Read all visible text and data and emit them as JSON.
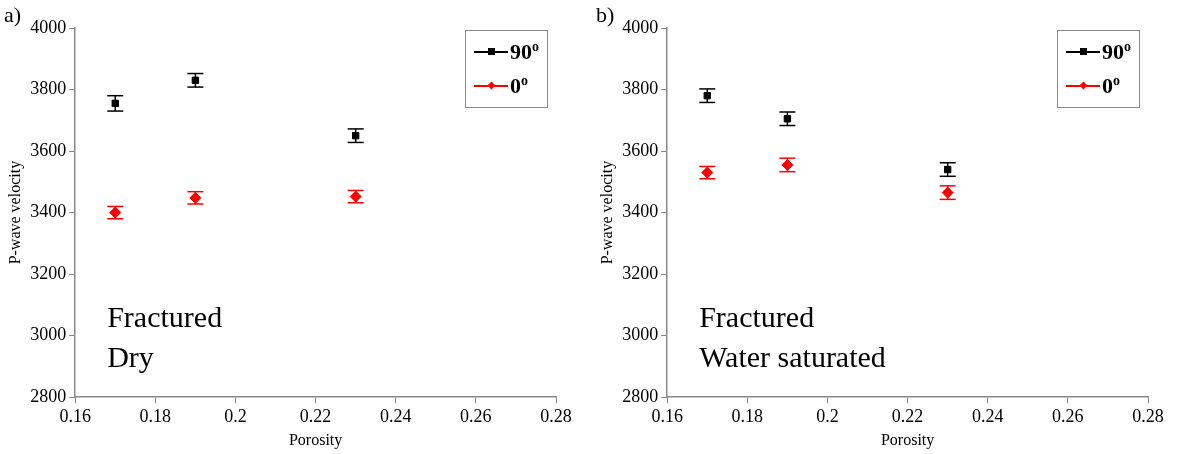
{
  "chart_data": [
    {
      "type": "scatter",
      "title": "a)",
      "xlabel": "Porosity",
      "ylabel": "P-wave velocity",
      "xlim": [
        0.16,
        0.28
      ],
      "xticks": [
        0.16,
        0.18,
        0.2,
        0.22,
        0.24,
        0.26,
        0.28
      ],
      "ylim": [
        2800,
        4000
      ],
      "yticks": [
        2800,
        3000,
        3200,
        3400,
        3600,
        3800,
        4000
      ],
      "grid": false,
      "legend": "top right",
      "annotations": [
        "Fractured",
        "Dry"
      ],
      "series": [
        {
          "name": "90$^{o}$",
          "color": "#000000",
          "marker": "square",
          "x": [
            0.17,
            0.19,
            0.23
          ],
          "values": [
            3755,
            3830,
            3650
          ],
          "errors": [
            25,
            22,
            22
          ]
        },
        {
          "name": "0$^{o}$",
          "color": "#ff0000",
          "marker": "diamond",
          "x": [
            0.17,
            0.19,
            0.23
          ],
          "values": [
            3400,
            3448,
            3452
          ],
          "errors": [
            20,
            20,
            20
          ]
        }
      ]
    },
    {
      "type": "scatter",
      "title": "b)",
      "xlabel": "Porosity",
      "ylabel": "P-wave velocity",
      "xlim": [
        0.16,
        0.28
      ],
      "xticks": [
        0.16,
        0.18,
        0.2,
        0.22,
        0.24,
        0.26,
        0.28
      ],
      "ylim": [
        2800,
        4000
      ],
      "yticks": [
        2800,
        3000,
        3200,
        3400,
        3600,
        3800,
        4000
      ],
      "grid": false,
      "legend": "top right",
      "annotations": [
        "Fractured",
        "Water saturated"
      ],
      "series": [
        {
          "name": "90$^{o}$",
          "color": "#000000",
          "marker": "square",
          "x": [
            0.17,
            0.19,
            0.23
          ],
          "values": [
            3780,
            3705,
            3540
          ],
          "errors": [
            22,
            22,
            22
          ]
        },
        {
          "name": "0$^{o}$",
          "color": "#ff0000",
          "marker": "diamond",
          "x": [
            0.17,
            0.19,
            0.23
          ],
          "values": [
            3530,
            3555,
            3465
          ],
          "errors": [
            20,
            22,
            22
          ]
        }
      ]
    }
  ]
}
